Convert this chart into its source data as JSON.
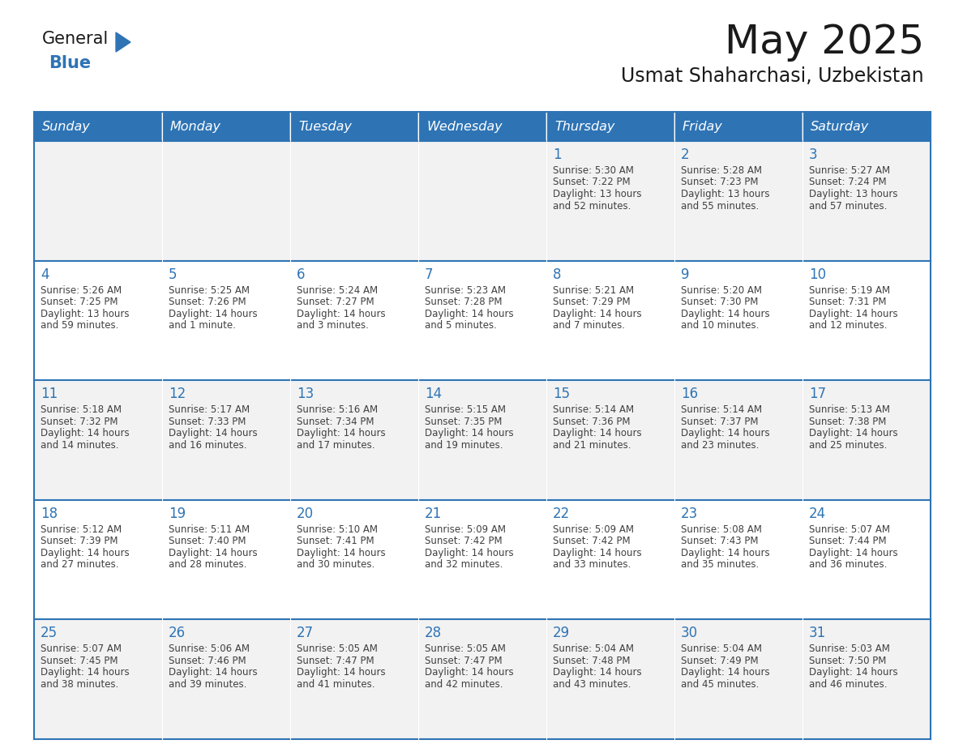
{
  "title": "May 2025",
  "subtitle": "Usmat Shaharchasi, Uzbekistan",
  "days_of_week": [
    "Sunday",
    "Monday",
    "Tuesday",
    "Wednesday",
    "Thursday",
    "Friday",
    "Saturday"
  ],
  "header_bg": "#2E74B5",
  "header_text": "#FFFFFF",
  "row_bg_odd": "#F2F2F2",
  "row_bg_even": "#FFFFFF",
  "cell_text_color": "#404040",
  "day_number_color": "#2E74B5",
  "border_color": "#2E74B5",
  "logo_general_color": "#1a1a1a",
  "logo_blue_color": "#2E74B5",
  "logo_triangle_color": "#2E74B5",
  "calendar_data": [
    [
      null,
      null,
      null,
      null,
      {
        "day": 1,
        "sunrise": "5:30 AM",
        "sunset": "7:22 PM",
        "daylight": "13 hours and 52 minutes."
      },
      {
        "day": 2,
        "sunrise": "5:28 AM",
        "sunset": "7:23 PM",
        "daylight": "13 hours and 55 minutes."
      },
      {
        "day": 3,
        "sunrise": "5:27 AM",
        "sunset": "7:24 PM",
        "daylight": "13 hours and 57 minutes."
      }
    ],
    [
      {
        "day": 4,
        "sunrise": "5:26 AM",
        "sunset": "7:25 PM",
        "daylight": "13 hours and 59 minutes."
      },
      {
        "day": 5,
        "sunrise": "5:25 AM",
        "sunset": "7:26 PM",
        "daylight": "14 hours and 1 minute."
      },
      {
        "day": 6,
        "sunrise": "5:24 AM",
        "sunset": "7:27 PM",
        "daylight": "14 hours and 3 minutes."
      },
      {
        "day": 7,
        "sunrise": "5:23 AM",
        "sunset": "7:28 PM",
        "daylight": "14 hours and 5 minutes."
      },
      {
        "day": 8,
        "sunrise": "5:21 AM",
        "sunset": "7:29 PM",
        "daylight": "14 hours and 7 minutes."
      },
      {
        "day": 9,
        "sunrise": "5:20 AM",
        "sunset": "7:30 PM",
        "daylight": "14 hours and 10 minutes."
      },
      {
        "day": 10,
        "sunrise": "5:19 AM",
        "sunset": "7:31 PM",
        "daylight": "14 hours and 12 minutes."
      }
    ],
    [
      {
        "day": 11,
        "sunrise": "5:18 AM",
        "sunset": "7:32 PM",
        "daylight": "14 hours and 14 minutes."
      },
      {
        "day": 12,
        "sunrise": "5:17 AM",
        "sunset": "7:33 PM",
        "daylight": "14 hours and 16 minutes."
      },
      {
        "day": 13,
        "sunrise": "5:16 AM",
        "sunset": "7:34 PM",
        "daylight": "14 hours and 17 minutes."
      },
      {
        "day": 14,
        "sunrise": "5:15 AM",
        "sunset": "7:35 PM",
        "daylight": "14 hours and 19 minutes."
      },
      {
        "day": 15,
        "sunrise": "5:14 AM",
        "sunset": "7:36 PM",
        "daylight": "14 hours and 21 minutes."
      },
      {
        "day": 16,
        "sunrise": "5:14 AM",
        "sunset": "7:37 PM",
        "daylight": "14 hours and 23 minutes."
      },
      {
        "day": 17,
        "sunrise": "5:13 AM",
        "sunset": "7:38 PM",
        "daylight": "14 hours and 25 minutes."
      }
    ],
    [
      {
        "day": 18,
        "sunrise": "5:12 AM",
        "sunset": "7:39 PM",
        "daylight": "14 hours and 27 minutes."
      },
      {
        "day": 19,
        "sunrise": "5:11 AM",
        "sunset": "7:40 PM",
        "daylight": "14 hours and 28 minutes."
      },
      {
        "day": 20,
        "sunrise": "5:10 AM",
        "sunset": "7:41 PM",
        "daylight": "14 hours and 30 minutes."
      },
      {
        "day": 21,
        "sunrise": "5:09 AM",
        "sunset": "7:42 PM",
        "daylight": "14 hours and 32 minutes."
      },
      {
        "day": 22,
        "sunrise": "5:09 AM",
        "sunset": "7:42 PM",
        "daylight": "14 hours and 33 minutes."
      },
      {
        "day": 23,
        "sunrise": "5:08 AM",
        "sunset": "7:43 PM",
        "daylight": "14 hours and 35 minutes."
      },
      {
        "day": 24,
        "sunrise": "5:07 AM",
        "sunset": "7:44 PM",
        "daylight": "14 hours and 36 minutes."
      }
    ],
    [
      {
        "day": 25,
        "sunrise": "5:07 AM",
        "sunset": "7:45 PM",
        "daylight": "14 hours and 38 minutes."
      },
      {
        "day": 26,
        "sunrise": "5:06 AM",
        "sunset": "7:46 PM",
        "daylight": "14 hours and 39 minutes."
      },
      {
        "day": 27,
        "sunrise": "5:05 AM",
        "sunset": "7:47 PM",
        "daylight": "14 hours and 41 minutes."
      },
      {
        "day": 28,
        "sunrise": "5:05 AM",
        "sunset": "7:47 PM",
        "daylight": "14 hours and 42 minutes."
      },
      {
        "day": 29,
        "sunrise": "5:04 AM",
        "sunset": "7:48 PM",
        "daylight": "14 hours and 43 minutes."
      },
      {
        "day": 30,
        "sunrise": "5:04 AM",
        "sunset": "7:49 PM",
        "daylight": "14 hours and 45 minutes."
      },
      {
        "day": 31,
        "sunrise": "5:03 AM",
        "sunset": "7:50 PM",
        "daylight": "14 hours and 46 minutes."
      }
    ]
  ]
}
